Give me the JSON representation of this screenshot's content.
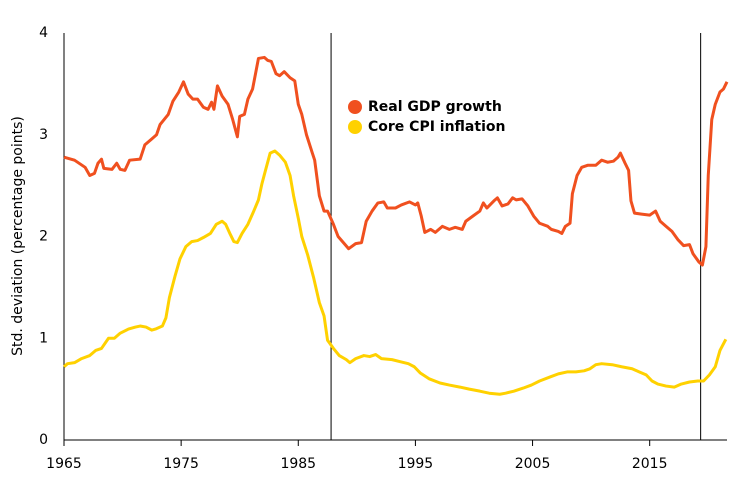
{
  "chart_data": {
    "type": "line",
    "y_label": "Std. deviation (percentage points)",
    "xlim": [
      1965,
      2021.6
    ],
    "xticks": [
      1965,
      1975,
      1985,
      1995,
      2005,
      2015
    ],
    "ylim": [
      0,
      4
    ],
    "yticks": [
      0,
      1,
      2,
      3,
      4
    ],
    "vlines": [
      1987.8,
      2019.35
    ],
    "vline_color": "#000000",
    "legend": "upper center",
    "series": [
      {
        "name": "Real GDP growth",
        "color": "#f0501f",
        "x": [
          1965,
          1965.9,
          1966.8,
          1967.2,
          1967.6,
          1967.9,
          1968.2,
          1968.4,
          1969.1,
          1969.5,
          1969.8,
          1970.2,
          1970.6,
          1971.5,
          1971.9,
          1972.5,
          1972.9,
          1973.2,
          1973.9,
          1974.3,
          1974.8,
          1975.2,
          1975.6,
          1976,
          1976.4,
          1976.9,
          1977.3,
          1977.6,
          1977.8,
          1978.1,
          1978.5,
          1979,
          1979.4,
          1979.8,
          1980,
          1980.4,
          1980.7,
          1981.1,
          1981.6,
          1982.1,
          1982.4,
          1982.7,
          1983.1,
          1983.4,
          1983.8,
          1984.3,
          1984.7,
          1985,
          1985.3,
          1985.7,
          1986.2,
          1986.4,
          1986.8,
          1987.2,
          1987.5,
          1988,
          1988.4,
          1989,
          1989.3,
          1989.9,
          1990.4,
          1990.8,
          1991.3,
          1991.8,
          1992.3,
          1992.6,
          1993.3,
          1993.8,
          1994.5,
          1995,
          1995.2,
          1995.5,
          1995.8,
          1996.3,
          1996.7,
          1997.3,
          1997.9,
          1998.4,
          1999,
          1999.3,
          1999.9,
          2000.5,
          2000.8,
          2001.1,
          2001.7,
          2002,
          2002.4,
          2002.9,
          2003.3,
          2003.6,
          2004.1,
          2004.6,
          2005.1,
          2005.6,
          2006.3,
          2006.6,
          2007.2,
          2007.5,
          2007.8,
          2008.2,
          2008.4,
          2008.8,
          2009.2,
          2009.7,
          2010.4,
          2010.9,
          2011.4,
          2011.9,
          2012.3,
          2012.5,
          2012.9,
          2013.2,
          2013.4,
          2013.7,
          2014.3,
          2015,
          2015.5,
          2015.9,
          2016.4,
          2016.9,
          2017.4,
          2017.9,
          2018.4,
          2018.7,
          2019.2,
          2019.5,
          2019.8,
          2020,
          2020.3,
          2020.6,
          2021,
          2021.3,
          2021.6
        ],
        "values": [
          2.78,
          2.75,
          2.68,
          2.6,
          2.62,
          2.72,
          2.76,
          2.67,
          2.66,
          2.72,
          2.66,
          2.65,
          2.75,
          2.76,
          2.9,
          2.96,
          3.0,
          3.1,
          3.2,
          3.33,
          3.42,
          3.52,
          3.4,
          3.35,
          3.35,
          3.27,
          3.25,
          3.32,
          3.25,
          3.48,
          3.38,
          3.3,
          3.15,
          2.98,
          3.18,
          3.2,
          3.35,
          3.45,
          3.75,
          3.76,
          3.73,
          3.72,
          3.6,
          3.58,
          3.62,
          3.56,
          3.53,
          3.3,
          3.2,
          3.0,
          2.82,
          2.75,
          2.4,
          2.25,
          2.25,
          2.12,
          2.0,
          1.92,
          1.88,
          1.93,
          1.94,
          2.15,
          2.25,
          2.33,
          2.34,
          2.28,
          2.28,
          2.31,
          2.34,
          2.31,
          2.33,
          2.2,
          2.04,
          2.07,
          2.04,
          2.1,
          2.07,
          2.09,
          2.07,
          2.15,
          2.2,
          2.25,
          2.33,
          2.28,
          2.35,
          2.38,
          2.3,
          2.32,
          2.38,
          2.36,
          2.37,
          2.3,
          2.2,
          2.13,
          2.1,
          2.07,
          2.05,
          2.03,
          2.1,
          2.13,
          2.42,
          2.6,
          2.68,
          2.7,
          2.7,
          2.75,
          2.73,
          2.74,
          2.78,
          2.82,
          2.72,
          2.65,
          2.35,
          2.23,
          2.22,
          2.21,
          2.25,
          2.15,
          2.1,
          2.05,
          1.97,
          1.91,
          1.92,
          1.83,
          1.75,
          1.72,
          1.9,
          2.6,
          3.15,
          3.3,
          3.42,
          3.45,
          3.52
        ]
      },
      {
        "name": "Core CPI inflation",
        "color": "#ffd100",
        "x": [
          1965,
          1965.3,
          1965.9,
          1966.5,
          1967.2,
          1967.7,
          1968.2,
          1968.8,
          1969.3,
          1969.8,
          1970.5,
          1971.1,
          1971.5,
          1972,
          1972.5,
          1972.8,
          1973.4,
          1973.7,
          1974,
          1974.5,
          1974.9,
          1975.4,
          1975.9,
          1976.4,
          1976.9,
          1977.5,
          1978,
          1978.5,
          1978.8,
          1979.2,
          1979.5,
          1979.8,
          1980.2,
          1980.7,
          1981.2,
          1981.6,
          1981.9,
          1982.2,
          1982.6,
          1983,
          1983.4,
          1983.9,
          1984.3,
          1984.6,
          1985,
          1985.3,
          1985.8,
          1986.3,
          1986.8,
          1987.2,
          1987.5,
          1988,
          1988.5,
          1989.1,
          1989.4,
          1989.9,
          1990.6,
          1991.1,
          1991.6,
          1992.1,
          1993,
          1993.7,
          1994.4,
          1994.9,
          1995.4,
          1996.2,
          1997.1,
          1997.9,
          1998.8,
          1999.6,
          2000.5,
          2001.3,
          2002.2,
          2002.7,
          2003.4,
          2004.2,
          2004.9,
          2005.6,
          2006.5,
          2007.2,
          2008,
          2008.7,
          2009.4,
          2009.9,
          2010.4,
          2010.9,
          2011.8,
          2012.6,
          2013.5,
          2014.1,
          2014.7,
          2015.2,
          2015.7,
          2016.4,
          2017.1,
          2017.7,
          2018.4,
          2019.1,
          2019.6,
          2020.1,
          2020.6,
          2021,
          2021.5
        ],
        "values": [
          0.72,
          0.75,
          0.76,
          0.8,
          0.83,
          0.88,
          0.9,
          1.0,
          1.0,
          1.05,
          1.09,
          1.11,
          1.12,
          1.11,
          1.08,
          1.09,
          1.12,
          1.2,
          1.4,
          1.62,
          1.78,
          1.9,
          1.95,
          1.96,
          1.99,
          2.03,
          2.12,
          2.15,
          2.12,
          2.02,
          1.95,
          1.94,
          2.03,
          2.12,
          2.25,
          2.36,
          2.52,
          2.65,
          2.82,
          2.84,
          2.8,
          2.73,
          2.6,
          2.4,
          2.18,
          2.0,
          1.82,
          1.6,
          1.35,
          1.22,
          0.98,
          0.9,
          0.83,
          0.79,
          0.76,
          0.8,
          0.83,
          0.82,
          0.84,
          0.8,
          0.79,
          0.77,
          0.75,
          0.72,
          0.66,
          0.6,
          0.56,
          0.54,
          0.52,
          0.5,
          0.48,
          0.46,
          0.45,
          0.46,
          0.48,
          0.51,
          0.54,
          0.58,
          0.62,
          0.65,
          0.67,
          0.67,
          0.68,
          0.7,
          0.74,
          0.75,
          0.74,
          0.72,
          0.7,
          0.67,
          0.64,
          0.58,
          0.55,
          0.53,
          0.52,
          0.55,
          0.57,
          0.58,
          0.58,
          0.64,
          0.72,
          0.88,
          0.99
        ]
      }
    ]
  }
}
